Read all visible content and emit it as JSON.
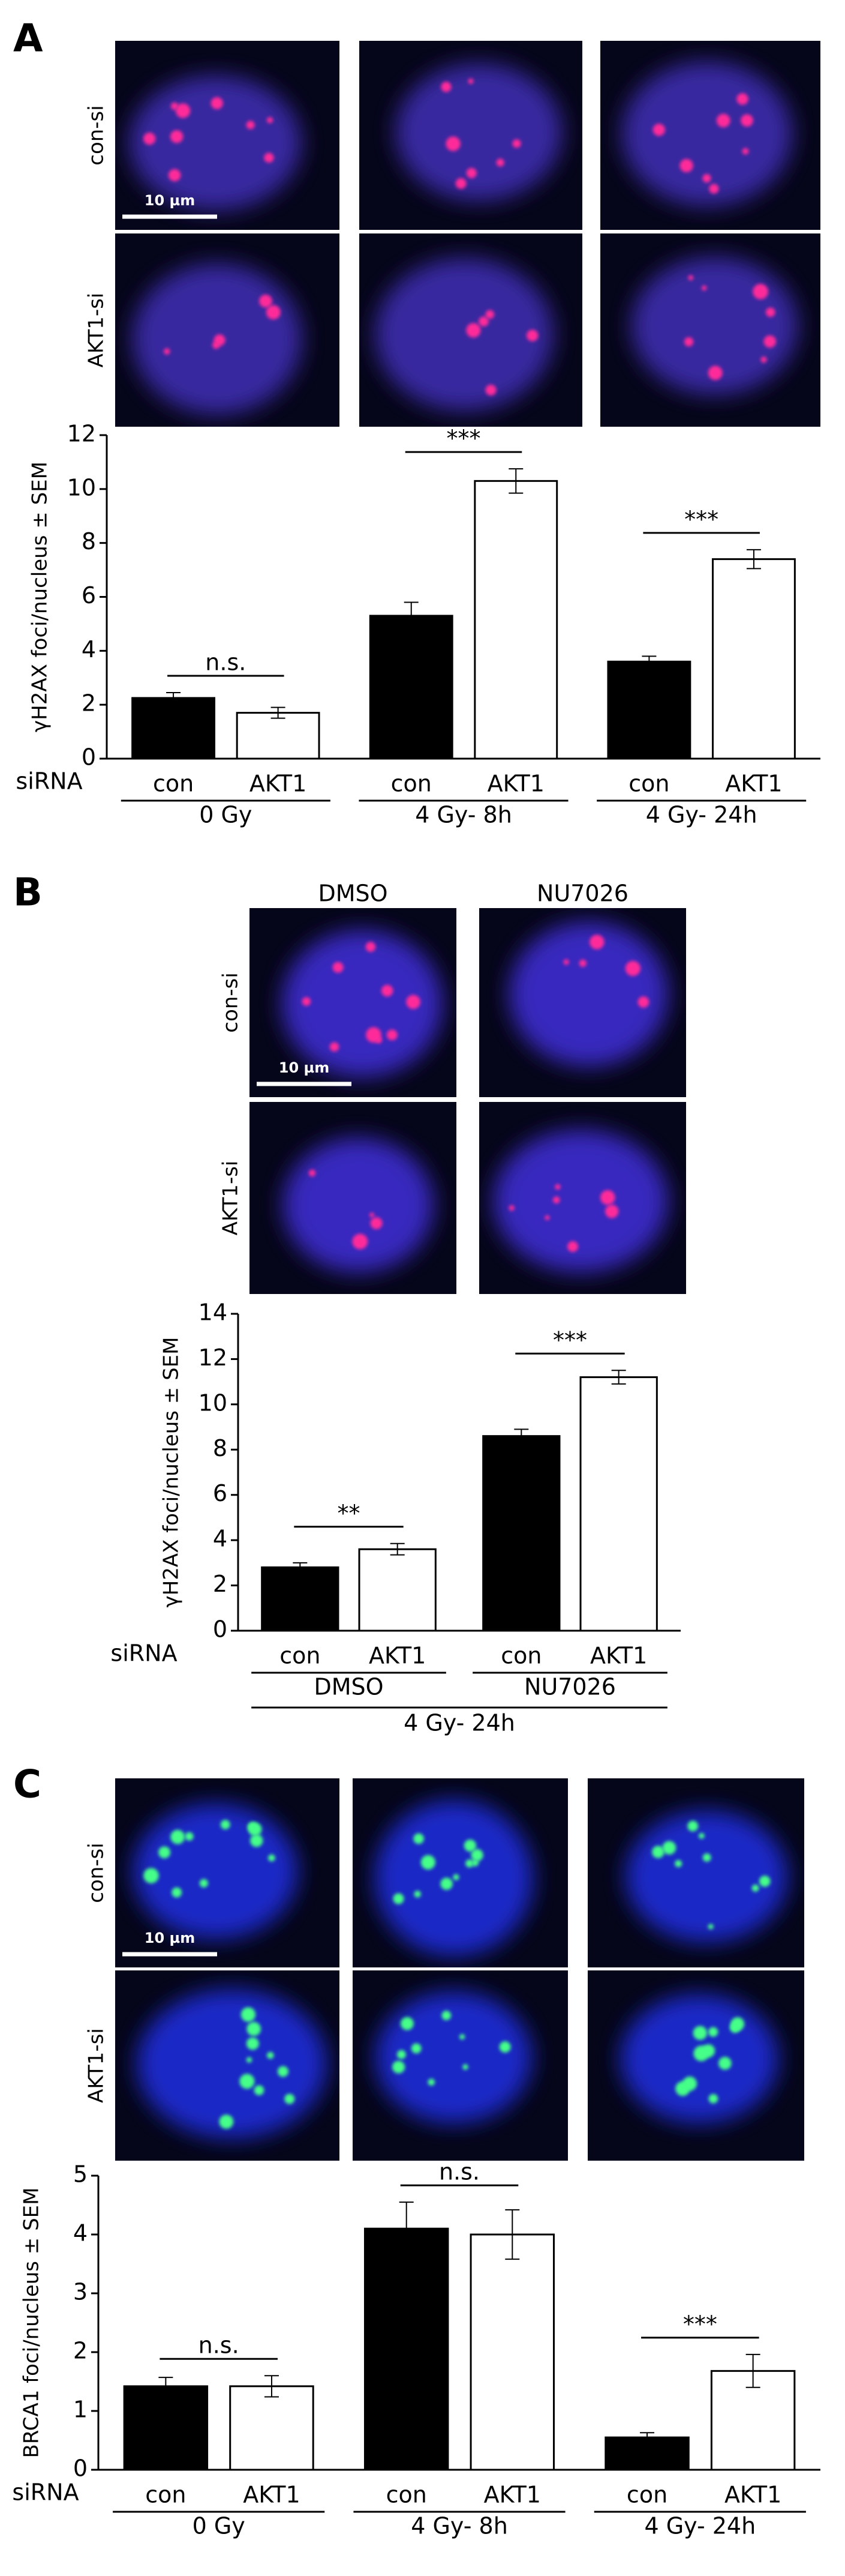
{
  "chart_data": [
    {
      "type": "bar",
      "panel": "A",
      "row_labels": [
        "con-si",
        "AKT1-si"
      ],
      "scale_bar": "10 µm",
      "y_label": "γH2AX foci/nucleus ± SEM",
      "x_label": "siRNA",
      "categories": [
        "0 Gy",
        "4 Gy- 8h",
        "4 Gy- 24h"
      ],
      "series": [
        {
          "name": "con",
          "color": "#000000",
          "values": [
            2.25,
            5.3,
            3.6
          ],
          "errors": [
            0.2,
            0.5,
            0.2
          ]
        },
        {
          "name": "AKT1",
          "color": "#ffffff",
          "values": [
            1.7,
            10.3,
            7.4
          ],
          "errors": [
            0.2,
            0.45,
            0.35
          ]
        }
      ],
      "significance": [
        "n.s.",
        "***",
        "***"
      ],
      "ylim": [
        0,
        12
      ],
      "yticks": [
        0,
        2,
        4,
        6,
        8,
        10,
        12
      ]
    },
    {
      "type": "bar",
      "panel": "B",
      "row_labels": [
        "con-si",
        "AKT1-si"
      ],
      "column_labels": [
        "DMSO",
        "NU7026"
      ],
      "scale_bar": "10 µm",
      "y_label": "γH2AX foci/nucleus ± SEM",
      "x_label": "siRNA",
      "categories": [
        "DMSO",
        "NU7026"
      ],
      "group_label": "4 Gy- 24h",
      "series": [
        {
          "name": "con",
          "color": "#000000",
          "values": [
            2.8,
            8.6
          ],
          "errors": [
            0.2,
            0.3
          ]
        },
        {
          "name": "AKT1",
          "color": "#ffffff",
          "values": [
            3.6,
            11.2
          ],
          "errors": [
            0.25,
            0.3
          ]
        }
      ],
      "significance": [
        "**",
        "***"
      ],
      "ylim": [
        0,
        14
      ],
      "yticks": [
        0,
        2,
        4,
        6,
        8,
        10,
        12,
        14
      ]
    },
    {
      "type": "bar",
      "panel": "C",
      "row_labels": [
        "con-si",
        "AKT1-si"
      ],
      "scale_bar": "10 µm",
      "y_label": "BRCA1 foci/nucleus ± SEM",
      "x_label": "siRNA",
      "categories": [
        "0 Gy",
        "4 Gy- 8h",
        "4 Gy- 24h"
      ],
      "series": [
        {
          "name": "con",
          "color": "#000000",
          "values": [
            1.42,
            4.1,
            0.55
          ],
          "errors": [
            0.15,
            0.45,
            0.08
          ]
        },
        {
          "name": "AKT1",
          "color": "#ffffff",
          "values": [
            1.42,
            4.0,
            1.68
          ],
          "errors": [
            0.18,
            0.42,
            0.28
          ]
        }
      ],
      "significance": [
        "n.s.",
        "n.s.",
        "***"
      ],
      "ylim": [
        0,
        5
      ],
      "yticks": [
        0,
        1,
        2,
        3,
        4,
        5
      ]
    }
  ]
}
